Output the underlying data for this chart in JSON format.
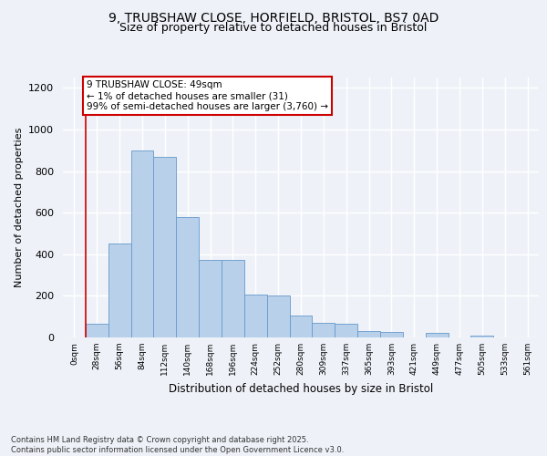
{
  "title_line1": "9, TRUBSHAW CLOSE, HORFIELD, BRISTOL, BS7 0AD",
  "title_line2": "Size of property relative to detached houses in Bristol",
  "xlabel": "Distribution of detached houses by size in Bristol",
  "ylabel": "Number of detached properties",
  "footnote": "Contains HM Land Registry data © Crown copyright and database right 2025.\nContains public sector information licensed under the Open Government Licence v3.0.",
  "bar_labels": [
    "0sqm",
    "28sqm",
    "56sqm",
    "84sqm",
    "112sqm",
    "140sqm",
    "168sqm",
    "196sqm",
    "224sqm",
    "252sqm",
    "280sqm",
    "309sqm",
    "337sqm",
    "365sqm",
    "393sqm",
    "421sqm",
    "449sqm",
    "477sqm",
    "505sqm",
    "533sqm",
    "561sqm"
  ],
  "bar_values": [
    0,
    65,
    450,
    900,
    870,
    580,
    375,
    375,
    205,
    200,
    105,
    70,
    65,
    30,
    25,
    0,
    20,
    0,
    8,
    0,
    0
  ],
  "bar_color": "#b8d0ea",
  "bar_edge_color": "#6699cc",
  "red_line_x": 1,
  "annotation_title": "9 TRUBSHAW CLOSE: 49sqm",
  "annotation_line1": "← 1% of detached houses are smaller (31)",
  "annotation_line2": "99% of semi-detached houses are larger (3,760) →",
  "annotation_box_color": "#ffffff",
  "annotation_box_edge": "#cc0000",
  "red_line_color": "#cc0000",
  "ylim": [
    0,
    1250
  ],
  "yticks": [
    0,
    200,
    400,
    600,
    800,
    1000,
    1200
  ],
  "bg_color": "#eef2f8",
  "plot_bg_color": "#eef2f8",
  "grid_color": "#ffffff",
  "title_fontsize": 10,
  "subtitle_fontsize": 9
}
